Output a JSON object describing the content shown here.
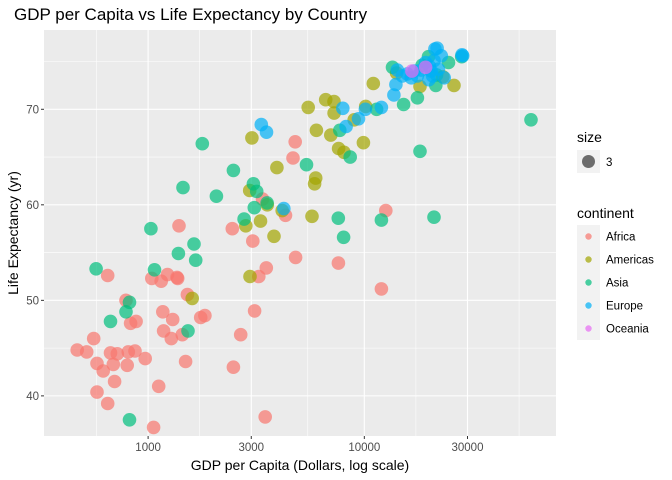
{
  "chart_data": {
    "type": "scatter",
    "title": "GDP per Capita vs Life Expectancy by Country",
    "xlabel": "GDP per Capita (Dollars, log scale)",
    "ylabel": "Life Expectancy (yr)",
    "x_scale": "log10",
    "xlim": [
      330,
      77000
    ],
    "ylim": [
      35.8,
      78.3
    ],
    "x_ticks": [
      1000,
      3000,
      10000,
      30000
    ],
    "x_tick_labels": [
      "1000",
      "3000",
      "10000",
      "30000"
    ],
    "y_ticks": [
      40,
      50,
      60,
      70
    ],
    "y_tick_labels": [
      "40",
      "50",
      "60",
      "70"
    ],
    "grid": true,
    "legend_position": "right",
    "size_legend": {
      "title": "size",
      "entries": [
        "3"
      ]
    },
    "legend": {
      "title": "continent",
      "entries": [
        {
          "name": "Africa",
          "color": "#F8766D"
        },
        {
          "name": "Americas",
          "color": "#A3A500"
        },
        {
          "name": "Asia",
          "color": "#00BF7D"
        },
        {
          "name": "Europe",
          "color": "#00B0F6"
        },
        {
          "name": "Oceania",
          "color": "#E76BF3"
        }
      ]
    },
    "point_opacity": 0.7,
    "series": [
      {
        "name": "Africa",
        "points": [
          [
            470,
            44.8
          ],
          [
            520,
            44.6
          ],
          [
            560,
            46.0
          ],
          [
            580,
            43.4
          ],
          [
            620,
            42.6
          ],
          [
            650,
            52.6
          ],
          [
            670,
            44.5
          ],
          [
            690,
            43.3
          ],
          [
            700,
            41.5
          ],
          [
            720,
            44.4
          ],
          [
            790,
            50.0
          ],
          [
            800,
            43.2
          ],
          [
            810,
            44.6
          ],
          [
            830,
            47.6
          ],
          [
            870,
            44.7
          ],
          [
            880,
            47.8
          ],
          [
            650,
            39.2
          ],
          [
            580,
            40.4
          ],
          [
            970,
            43.9
          ],
          [
            1040,
            52.3
          ],
          [
            1060,
            36.7
          ],
          [
            1120,
            41.0
          ],
          [
            1150,
            52.0
          ],
          [
            1170,
            48.8
          ],
          [
            1180,
            46.8
          ],
          [
            1230,
            52.7
          ],
          [
            1300,
            48.0
          ],
          [
            1360,
            52.4
          ],
          [
            1370,
            52.3
          ],
          [
            1390,
            57.8
          ],
          [
            1440,
            46.4
          ],
          [
            1490,
            43.6
          ],
          [
            1520,
            50.6
          ],
          [
            1280,
            46.0
          ],
          [
            1750,
            48.2
          ],
          [
            1830,
            48.4
          ],
          [
            2450,
            57.5
          ],
          [
            2480,
            43.0
          ],
          [
            2680,
            46.4
          ],
          [
            3050,
            56.2
          ],
          [
            3110,
            48.9
          ],
          [
            3250,
            52.5
          ],
          [
            3380,
            60.6
          ],
          [
            3520,
            53.4
          ],
          [
            3480,
            37.8
          ],
          [
            4320,
            58.9
          ],
          [
            4810,
            54.5
          ],
          [
            4680,
            64.9
          ],
          [
            4790,
            66.6
          ],
          [
            7590,
            53.9
          ],
          [
            12000,
            51.2
          ],
          [
            12570,
            59.4
          ]
        ]
      },
      {
        "name": "Americas",
        "points": [
          [
            1600,
            50.2
          ],
          [
            2830,
            57.8
          ],
          [
            2950,
            61.5
          ],
          [
            2960,
            52.5
          ],
          [
            3310,
            58.3
          ],
          [
            3560,
            60.0
          ],
          [
            3820,
            56.7
          ],
          [
            3940,
            63.9
          ],
          [
            4170,
            59.4
          ],
          [
            5500,
            70.2
          ],
          [
            5730,
            58.8
          ],
          [
            5890,
            62.2
          ],
          [
            5960,
            62.8
          ],
          [
            6000,
            67.8
          ],
          [
            6630,
            71.0
          ],
          [
            7000,
            67.3
          ],
          [
            7240,
            70.8
          ],
          [
            7250,
            69.6
          ],
          [
            7600,
            65.9
          ],
          [
            8050,
            65.5
          ],
          [
            8980,
            68.9
          ],
          [
            9900,
            66.5
          ],
          [
            10150,
            70.3
          ],
          [
            11000,
            72.7
          ],
          [
            14100,
            73.8
          ],
          [
            18100,
            72.4
          ],
          [
            23100,
            73.4
          ],
          [
            26000,
            72.5
          ],
          [
            3020,
            67.0
          ]
        ]
      },
      {
        "name": "Asia",
        "points": [
          [
            575,
            53.3
          ],
          [
            670,
            47.8
          ],
          [
            790,
            48.8
          ],
          [
            820,
            49.8
          ],
          [
            820,
            37.5
          ],
          [
            1030,
            57.5
          ],
          [
            1070,
            53.2
          ],
          [
            1380,
            54.9
          ],
          [
            1450,
            61.8
          ],
          [
            1530,
            46.8
          ],
          [
            1630,
            55.9
          ],
          [
            1660,
            54.2
          ],
          [
            1780,
            66.4
          ],
          [
            2070,
            60.9
          ],
          [
            2480,
            63.6
          ],
          [
            2780,
            58.5
          ],
          [
            3070,
            62.2
          ],
          [
            3100,
            59.7
          ],
          [
            3180,
            61.4
          ],
          [
            3550,
            60.2
          ],
          [
            5400,
            64.2
          ],
          [
            7580,
            58.6
          ],
          [
            7700,
            67.8
          ],
          [
            8020,
            56.6
          ],
          [
            8600,
            65.0
          ],
          [
            11400,
            70.0
          ],
          [
            12000,
            58.4
          ],
          [
            13500,
            74.4
          ],
          [
            15200,
            70.5
          ],
          [
            17600,
            71.2
          ],
          [
            18100,
            65.6
          ],
          [
            18500,
            74.6
          ],
          [
            21000,
            58.7
          ],
          [
            19800,
            75.5
          ],
          [
            21400,
            72.5
          ],
          [
            21600,
            73.6
          ],
          [
            24500,
            74.9
          ],
          [
            28200,
            75.5
          ],
          [
            59000,
            68.9
          ]
        ]
      },
      {
        "name": "Europe",
        "points": [
          [
            3530,
            67.6
          ],
          [
            3340,
            68.4
          ],
          [
            4240,
            59.6
          ],
          [
            7950,
            70.1
          ],
          [
            8240,
            68.2
          ],
          [
            9400,
            69.0
          ],
          [
            10120,
            70.0
          ],
          [
            12000,
            70.2
          ],
          [
            13700,
            71.5
          ],
          [
            14000,
            72.6
          ],
          [
            14200,
            74.1
          ],
          [
            15000,
            73.5
          ],
          [
            15800,
            73.7
          ],
          [
            16500,
            73.3
          ],
          [
            17000,
            74.0
          ],
          [
            17600,
            73.5
          ],
          [
            18300,
            74.1
          ],
          [
            19200,
            74.9
          ],
          [
            19900,
            73.1
          ],
          [
            20400,
            74.0
          ],
          [
            20700,
            73.5
          ],
          [
            21200,
            76.3
          ],
          [
            21700,
            76.4
          ],
          [
            22000,
            74.2
          ],
          [
            22700,
            75.6
          ],
          [
            23400,
            73.3
          ],
          [
            28300,
            75.7
          ],
          [
            28500,
            75.6
          ],
          [
            20000,
            74.5
          ],
          [
            21000,
            75.1
          ]
        ]
      },
      {
        "name": "Oceania",
        "points": [
          [
            16600,
            74.0
          ],
          [
            19200,
            74.4
          ]
        ]
      }
    ]
  }
}
